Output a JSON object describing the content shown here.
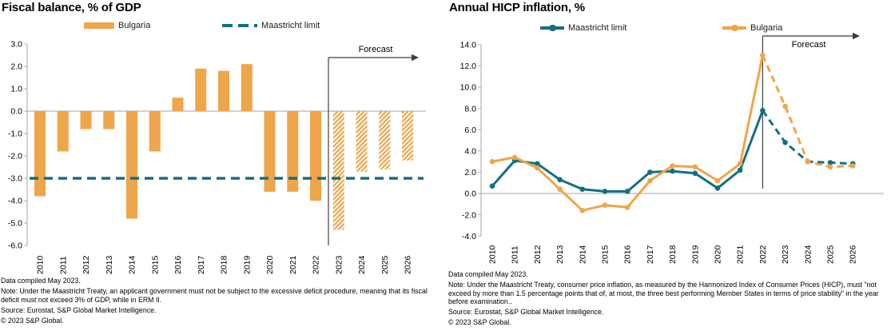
{
  "colors": {
    "orange": "#EFA54A",
    "teal": "#136F82",
    "axis_gray": "#A6A6A6",
    "forecast_gray": "#3F3F3F",
    "text": "#000000"
  },
  "chart_data": [
    {
      "type": "bar",
      "title": "Fiscal balance, % of GDP",
      "categories": [
        "2010",
        "2011",
        "2012",
        "2013",
        "2014",
        "2015",
        "2016",
        "2017",
        "2018",
        "2019",
        "2020",
        "2021",
        "2022",
        "2023",
        "2024",
        "2025",
        "2026"
      ],
      "series": [
        {
          "name": "Bulgaria",
          "values": [
            -3.8,
            -1.8,
            -0.8,
            -0.8,
            -4.8,
            -1.8,
            0.6,
            1.9,
            1.8,
            2.1,
            -3.6,
            -3.6,
            -4.0,
            -5.3,
            -2.7,
            -2.6,
            -2.2
          ]
        }
      ],
      "reference_line": {
        "name": "Maastricht limit",
        "value": -3.0
      },
      "ylim": [
        -6.0,
        3.0
      ],
      "ytick_step": 1.0,
      "forecast_from": "2023",
      "forecast_label": "Forecast",
      "legend": [
        {
          "label": "Bulgaria",
          "swatch": "bar-orange"
        },
        {
          "label": "Maastricht limit",
          "swatch": "dash-teal"
        }
      ],
      "grid": "off",
      "x_labels_rotated": true
    },
    {
      "type": "line",
      "title": "Annual HICP inflation, %",
      "categories": [
        "2010",
        "2011",
        "2012",
        "2013",
        "2014",
        "2015",
        "2016",
        "2017",
        "2018",
        "2019",
        "2020",
        "2021",
        "2022",
        "2023",
        "2024",
        "2025",
        "2026"
      ],
      "series": [
        {
          "name": "Maastricht limit",
          "color_key": "teal",
          "values": [
            0.7,
            3.1,
            2.8,
            1.3,
            0.4,
            0.2,
            0.2,
            2.0,
            2.1,
            1.9,
            0.5,
            2.2,
            7.8,
            4.8,
            3.0,
            2.9,
            2.8
          ]
        },
        {
          "name": "Bulgaria",
          "color_key": "orange",
          "values": [
            3.0,
            3.4,
            2.4,
            0.4,
            -1.6,
            -1.1,
            -1.3,
            1.2,
            2.6,
            2.5,
            1.2,
            2.8,
            13.0,
            8.2,
            3.0,
            2.5,
            2.6
          ]
        }
      ],
      "ylim": [
        -4.0,
        14.0
      ],
      "ytick_step": 2.0,
      "forecast_from": "2022",
      "forecast_label": "Forecast",
      "legend": [
        {
          "label": "Maastricht limit",
          "swatch": "line-teal"
        },
        {
          "label": "Bulgaria",
          "swatch": "line-orange"
        }
      ],
      "grid": "off",
      "x_labels_rotated": true
    }
  ],
  "footers": [
    {
      "data_compiled": "Data compiled May 2023.",
      "note": "Note: Under the Maastricht Treaty, an applicant government must not be subject to the excessive deficit procedure, meaning that its fiscal deficit must not exceed 3% of GDP, while in ERM II.",
      "source": "Source: Eurostat, S&P Global Market Intelligence.",
      "copyright": "© 2023 S&P Global."
    },
    {
      "data_compiled": "Data compiled May 2023.",
      "note": "Note: Under the Maastricht Treaty, consumer price inflation, as measured by the Harmonized Index of Consumer Prices (HICP), must \"not exceed by more than 1.5 percentage points that of, at most, the three best performing Member States in terms of price stability\" in the year before examination..",
      "source": "Source: Eurostat, S&P Global Market Intelligence.",
      "copyright": "© 2023 S&P Global."
    }
  ]
}
